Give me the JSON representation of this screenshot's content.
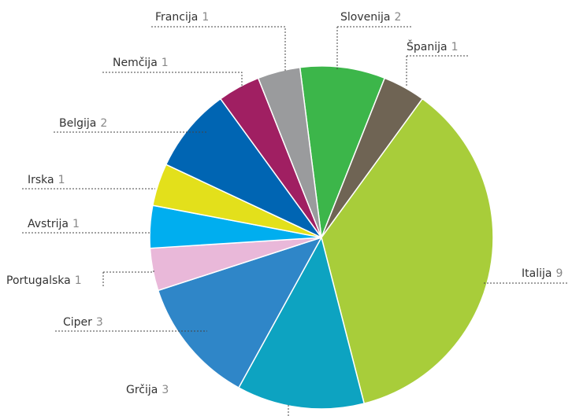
{
  "chart_data": {
    "type": "pie",
    "categories": [
      "Slovenija",
      "Španija",
      "Italija",
      "Grčija",
      "Ciper",
      "Portugalska",
      "Avstrija",
      "Irska",
      "Belgija",
      "Nemčija",
      "Francija"
    ],
    "values": [
      2,
      1,
      9,
      3,
      3,
      1,
      1,
      1,
      2,
      1,
      1
    ],
    "colors": [
      "#3cb64a",
      "#6f6454",
      "#a8cd3a",
      "#0da3c1",
      "#2f86c8",
      "#e9b8d9",
      "#00aeef",
      "#e3e01b",
      "#0065b3",
      "#a01f62",
      "#9a9b9d"
    ]
  }
}
